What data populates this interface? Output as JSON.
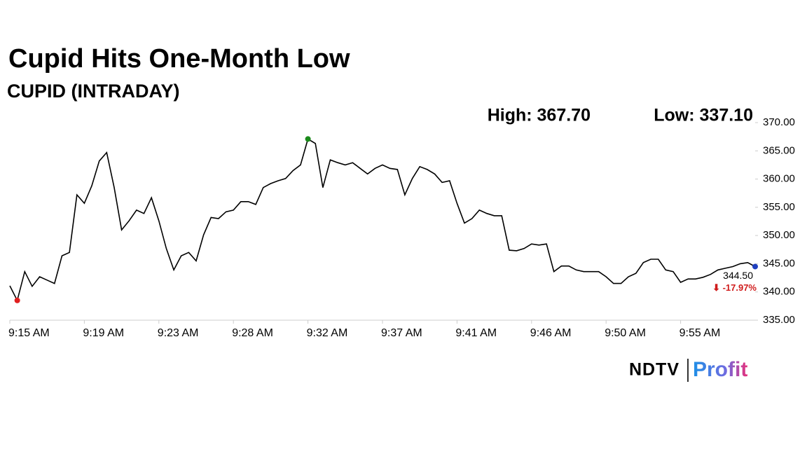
{
  "chart_data": {
    "type": "line",
    "title": "Cupid Hits One-Month Low",
    "subtitle": "CUPID (INTRADAY)",
    "high_text": "High: 367.70",
    "low_text": "Low: 337.10",
    "last_label": "344.50",
    "change_label": "⬇ -17.97%",
    "brand": "NDTV",
    "brand_sub": "Profit",
    "color": "#000000",
    "low_color": "#e02020",
    "high_color": "#1a8a1a",
    "last_color": "#1f3fbf",
    "change_color": "#d01c1c",
    "categories": [
      "9:15 AM",
      null,
      null,
      null,
      null,
      null,
      null,
      null,
      null,
      null,
      "9:19 AM",
      null,
      null,
      null,
      null,
      null,
      null,
      null,
      null,
      null,
      "9:23 AM",
      null,
      null,
      null,
      null,
      null,
      null,
      null,
      null,
      null,
      "9:28 AM",
      null,
      null,
      null,
      null,
      null,
      null,
      null,
      null,
      null,
      "9:32 AM",
      null,
      null,
      null,
      null,
      null,
      null,
      null,
      null,
      null,
      "9:37 AM",
      null,
      null,
      null,
      null,
      null,
      null,
      null,
      null,
      null,
      "9:41 AM",
      null,
      null,
      null,
      null,
      null,
      null,
      null,
      null,
      null,
      "9:46 AM",
      null,
      null,
      null,
      null,
      null,
      null,
      null,
      null,
      null,
      "9:50 AM",
      null,
      null,
      null,
      null,
      null,
      null,
      null,
      null,
      null,
      "9:55 AM",
      null,
      null,
      null,
      null,
      null,
      null,
      null,
      null,
      null,
      null
    ],
    "values": [
      341.1,
      338.5,
      343.6,
      341.0,
      342.7,
      342.1,
      341.5,
      346.4,
      347.0,
      357.2,
      355.7,
      358.8,
      363.2,
      364.7,
      358.5,
      351.0,
      352.6,
      354.5,
      353.9,
      356.7,
      352.6,
      347.7,
      343.9,
      346.4,
      347.0,
      345.5,
      350.1,
      353.2,
      353.0,
      354.2,
      354.5,
      356.0,
      356.0,
      355.5,
      358.5,
      359.2,
      359.7,
      360.1,
      361.5,
      362.5,
      367.1,
      366.3,
      358.5,
      363.4,
      362.9,
      362.5,
      362.9,
      361.9,
      360.9,
      361.9,
      362.5,
      361.9,
      361.7,
      357.2,
      360.1,
      362.2,
      361.7,
      360.9,
      359.4,
      359.7,
      355.7,
      352.2,
      353.0,
      354.5,
      353.9,
      353.5,
      353.5,
      347.4,
      347.3,
      347.7,
      348.5,
      348.3,
      348.5,
      343.6,
      344.6,
      344.6,
      343.9,
      343.6,
      343.6,
      343.6,
      342.7,
      341.5,
      341.5,
      342.7,
      343.3,
      345.2,
      345.8,
      345.8,
      343.9,
      343.6,
      341.7,
      342.3,
      342.3,
      342.6,
      343.1,
      343.9,
      344.2,
      344.5,
      345.0,
      345.2,
      344.5
    ],
    "ylim": [
      335,
      370
    ],
    "yticks": [
      {
        "value": 335,
        "label": "335.00"
      },
      {
        "value": 340,
        "label": "340.00"
      },
      {
        "value": 345,
        "label": "345.00"
      },
      {
        "value": 350,
        "label": "350.00"
      },
      {
        "value": 355,
        "label": "355.00"
      },
      {
        "value": 360,
        "label": "360.00"
      },
      {
        "value": 365,
        "label": "365.00"
      },
      {
        "value": 370,
        "label": "370.00"
      }
    ]
  }
}
